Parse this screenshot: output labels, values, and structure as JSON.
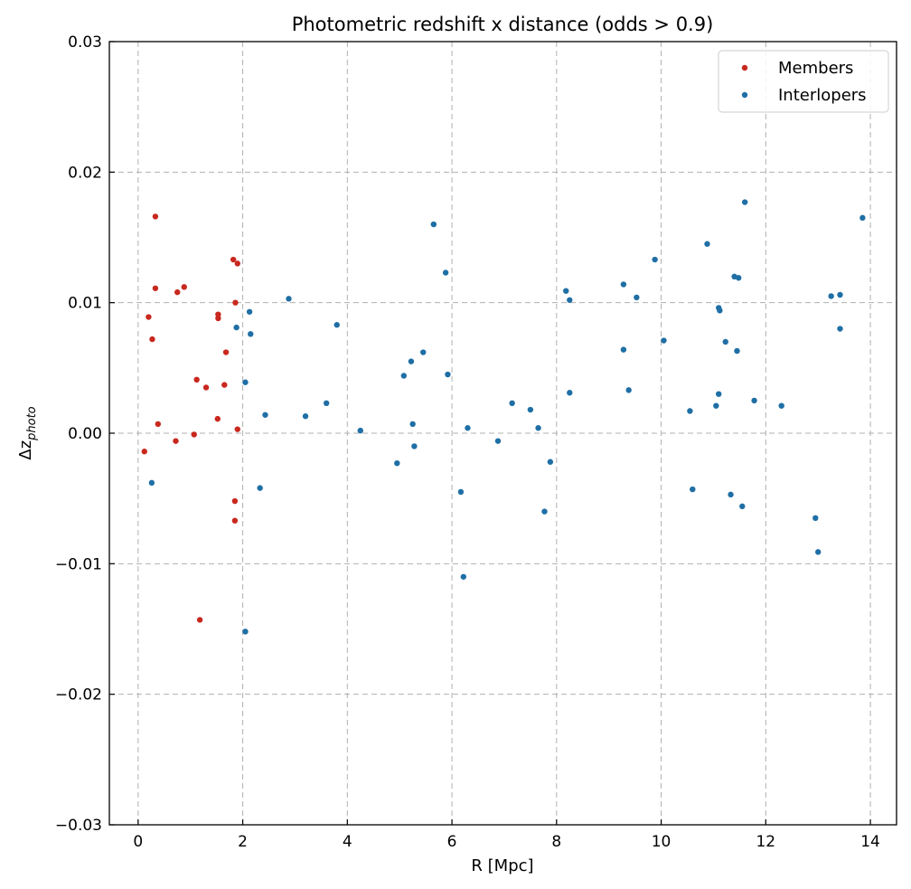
{
  "chart_data": {
    "type": "scatter",
    "title": "Photometric redshift x distance (odds > 0.9)",
    "xlabel": "R [Mpc]",
    "ylabel_main": "Δz",
    "ylabel_sub": "photo",
    "xlim": [
      -0.55,
      14.5
    ],
    "ylim": [
      -0.03,
      0.03
    ],
    "xticks": [
      0,
      2,
      4,
      6,
      8,
      10,
      12,
      14
    ],
    "xtick_labels": [
      "0",
      "2",
      "4",
      "6",
      "8",
      "10",
      "12",
      "14"
    ],
    "yticks": [
      -0.03,
      -0.02,
      -0.01,
      0.0,
      0.01,
      0.02,
      0.03
    ],
    "ytick_labels": [
      "−0.03",
      "−0.02",
      "−0.01",
      "0.00",
      "0.01",
      "0.02",
      "0.03"
    ],
    "grid": true,
    "legend_position": "top-right",
    "series": [
      {
        "name": "Members",
        "color": "#c8281e",
        "points": [
          [
            0.33,
            0.0166
          ],
          [
            1.82,
            0.0133
          ],
          [
            1.9,
            0.013
          ],
          [
            0.88,
            0.0112
          ],
          [
            0.33,
            0.0111
          ],
          [
            0.75,
            0.0108
          ],
          [
            1.86,
            0.01
          ],
          [
            1.53,
            0.0091
          ],
          [
            0.2,
            0.0089
          ],
          [
            1.53,
            0.0088
          ],
          [
            0.27,
            0.0072
          ],
          [
            1.68,
            0.0062
          ],
          [
            1.12,
            0.0041
          ],
          [
            1.65,
            0.0037
          ],
          [
            1.3,
            0.0035
          ],
          [
            1.52,
            0.0011
          ],
          [
            0.38,
            0.0007
          ],
          [
            1.9,
            0.0003
          ],
          [
            1.07,
            -0.0001
          ],
          [
            0.72,
            -0.0006
          ],
          [
            0.12,
            -0.0014
          ],
          [
            1.85,
            -0.0052
          ],
          [
            1.85,
            -0.0067
          ],
          [
            1.18,
            -0.0143
          ]
        ]
      },
      {
        "name": "Interlopers",
        "color": "#1f6fa5",
        "points": [
          [
            0.26,
            -0.0038
          ],
          [
            1.88,
            0.0081
          ],
          [
            2.13,
            0.0093
          ],
          [
            2.15,
            0.0076
          ],
          [
            2.05,
            0.0039
          ],
          [
            2.43,
            0.0014
          ],
          [
            2.33,
            -0.0042
          ],
          [
            2.05,
            -0.0152
          ],
          [
            2.88,
            0.0103
          ],
          [
            3.2,
            0.0013
          ],
          [
            3.6,
            0.0023
          ],
          [
            3.8,
            0.0083
          ],
          [
            4.25,
            0.0002
          ],
          [
            4.95,
            -0.0023
          ],
          [
            5.08,
            0.0044
          ],
          [
            5.22,
            0.0055
          ],
          [
            5.25,
            0.0007
          ],
          [
            5.28,
            -0.001
          ],
          [
            5.45,
            0.0062
          ],
          [
            5.65,
            0.016
          ],
          [
            5.88,
            0.0123
          ],
          [
            5.92,
            0.0045
          ],
          [
            6.17,
            -0.0045
          ],
          [
            6.22,
            -0.011
          ],
          [
            6.3,
            0.0004
          ],
          [
            6.88,
            -0.0006
          ],
          [
            7.15,
            0.0023
          ],
          [
            7.5,
            0.0018
          ],
          [
            7.65,
            0.0004
          ],
          [
            7.77,
            -0.006
          ],
          [
            7.88,
            -0.0022
          ],
          [
            8.18,
            0.0109
          ],
          [
            8.25,
            0.0102
          ],
          [
            8.25,
            0.0031
          ],
          [
            9.28,
            0.0114
          ],
          [
            9.28,
            0.0064
          ],
          [
            9.38,
            0.0033
          ],
          [
            9.53,
            0.0104
          ],
          [
            9.88,
            0.0133
          ],
          [
            10.05,
            0.0071
          ],
          [
            10.55,
            0.0017
          ],
          [
            10.6,
            -0.0043
          ],
          [
            10.88,
            0.0145
          ],
          [
            11.05,
            0.0021
          ],
          [
            11.1,
            0.0096
          ],
          [
            11.12,
            0.0094
          ],
          [
            11.1,
            0.003
          ],
          [
            11.23,
            0.007
          ],
          [
            11.33,
            -0.0047
          ],
          [
            11.4,
            0.012
          ],
          [
            11.45,
            0.0063
          ],
          [
            11.48,
            0.0119
          ],
          [
            11.55,
            -0.0056
          ],
          [
            11.6,
            0.0177
          ],
          [
            11.78,
            0.0025
          ],
          [
            12.3,
            0.0021
          ],
          [
            12.95,
            -0.0065
          ],
          [
            13.0,
            -0.0091
          ],
          [
            13.25,
            0.0105
          ],
          [
            13.42,
            0.0106
          ],
          [
            13.42,
            0.008
          ],
          [
            13.85,
            0.0165
          ]
        ]
      }
    ]
  }
}
